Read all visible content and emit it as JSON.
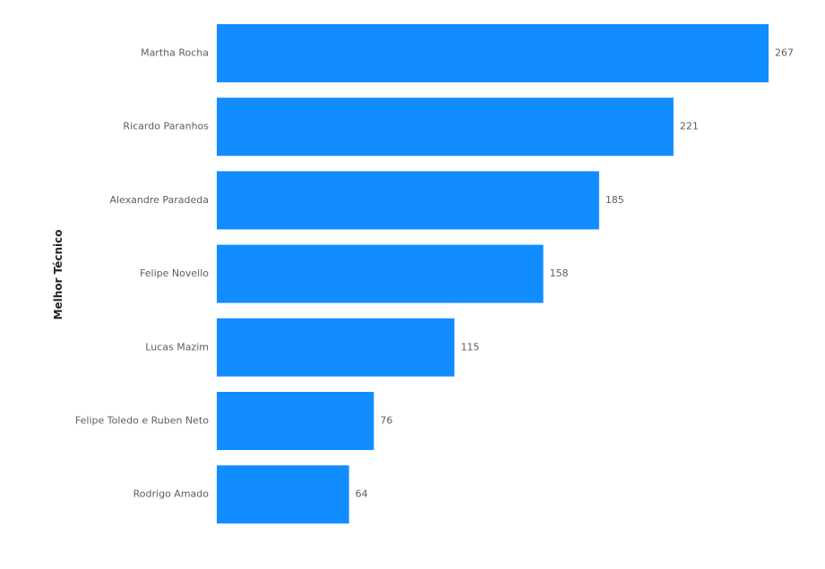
{
  "chart_data": {
    "type": "bar",
    "orientation": "horizontal",
    "ylabel": "Melhor Técnico",
    "xlabel": "",
    "categories": [
      "Martha Rocha",
      "Ricardo Paranhos",
      "Alexandre Paradeda",
      "Felipe Novello",
      "Lucas Mazim",
      "Felipe Toledo e Ruben Neto",
      "Rodrigo Amado"
    ],
    "values": [
      267,
      221,
      185,
      158,
      115,
      76,
      64
    ],
    "xlim": [
      0,
      267
    ],
    "data_labels": true,
    "grid": false,
    "legend": "none",
    "bar_color": "#118DFF",
    "label_color": "#605E5C"
  }
}
